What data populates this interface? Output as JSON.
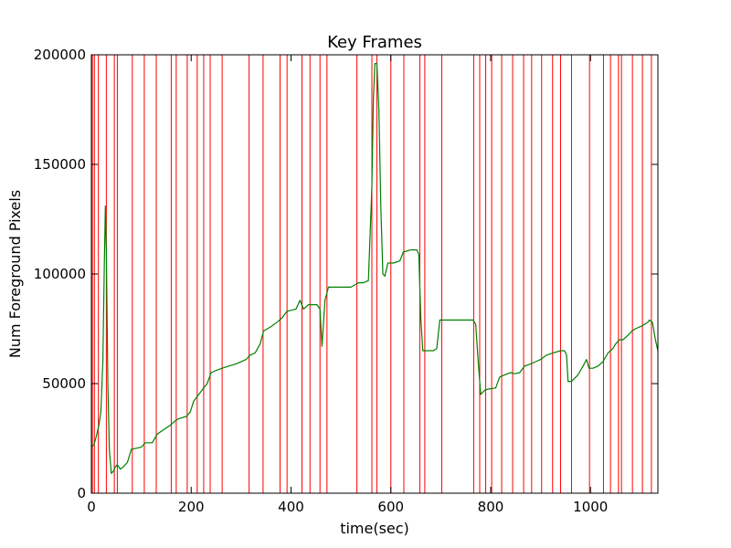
{
  "chart_data": {
    "type": "line",
    "title": "Key Frames",
    "xlabel": "time(sec)",
    "ylabel": "Num Foreground Pixels",
    "xlim": [
      0,
      1135
    ],
    "ylim": [
      0,
      200000
    ],
    "xticks": [
      0,
      200,
      400,
      600,
      800,
      1000
    ],
    "yticks": [
      0,
      50000,
      100000,
      150000,
      200000
    ],
    "xtick_labels": [
      "0",
      "200",
      "400",
      "600",
      "800",
      "1000"
    ],
    "ytick_labels": [
      "0",
      "50000",
      "100000",
      "150000",
      "200000"
    ],
    "grid": false,
    "legend": "none",
    "series": [
      {
        "color": "#008000",
        "points": [
          [
            0,
            21000
          ],
          [
            5,
            22000
          ],
          [
            10,
            26000
          ],
          [
            15,
            31000
          ],
          [
            19,
            37000
          ],
          [
            23,
            60000
          ],
          [
            26,
            105000
          ],
          [
            28,
            131000
          ],
          [
            30,
            110000
          ],
          [
            33,
            50000
          ],
          [
            36,
            20000
          ],
          [
            40,
            9000
          ],
          [
            44,
            10000
          ],
          [
            48,
            12000
          ],
          [
            52,
            13000
          ],
          [
            58,
            11000
          ],
          [
            64,
            12000
          ],
          [
            72,
            14000
          ],
          [
            80,
            20000
          ],
          [
            90,
            20500
          ],
          [
            100,
            21000
          ],
          [
            108,
            23000
          ],
          [
            122,
            23000
          ],
          [
            132,
            27000
          ],
          [
            145,
            29000
          ],
          [
            158,
            31000
          ],
          [
            168,
            33000
          ],
          [
            175,
            34000
          ],
          [
            190,
            35000
          ],
          [
            198,
            37000
          ],
          [
            205,
            42000
          ],
          [
            215,
            45000
          ],
          [
            225,
            48000
          ],
          [
            232,
            50000
          ],
          [
            240,
            55000
          ],
          [
            250,
            56000
          ],
          [
            262,
            57000
          ],
          [
            275,
            58000
          ],
          [
            290,
            59000
          ],
          [
            310,
            61000
          ],
          [
            318,
            63000
          ],
          [
            328,
            64000
          ],
          [
            338,
            68000
          ],
          [
            345,
            74000
          ],
          [
            360,
            76000
          ],
          [
            372,
            78000
          ],
          [
            382,
            80000
          ],
          [
            392,
            83000
          ],
          [
            410,
            84000
          ],
          [
            418,
            88000
          ],
          [
            425,
            84000
          ],
          [
            435,
            86000
          ],
          [
            445,
            86000
          ],
          [
            452,
            86000
          ],
          [
            458,
            84000
          ],
          [
            462,
            67000
          ],
          [
            468,
            88000
          ],
          [
            475,
            94000
          ],
          [
            490,
            94000
          ],
          [
            505,
            94000
          ],
          [
            520,
            94000
          ],
          [
            535,
            96000
          ],
          [
            545,
            96000
          ],
          [
            555,
            97000
          ],
          [
            562,
            140000
          ],
          [
            565,
            180000
          ],
          [
            568,
            196000
          ],
          [
            572,
            196000
          ],
          [
            576,
            175000
          ],
          [
            580,
            130000
          ],
          [
            584,
            100000
          ],
          [
            588,
            99000
          ],
          [
            594,
            105000
          ],
          [
            605,
            105000
          ],
          [
            618,
            106000
          ],
          [
            625,
            110000
          ],
          [
            640,
            111000
          ],
          [
            652,
            111000
          ],
          [
            656,
            109000
          ],
          [
            660,
            80000
          ],
          [
            664,
            65000
          ],
          [
            675,
            65000
          ],
          [
            685,
            65000
          ],
          [
            692,
            66000
          ],
          [
            698,
            79000
          ],
          [
            710,
            79000
          ],
          [
            730,
            79000
          ],
          [
            750,
            79000
          ],
          [
            765,
            79000
          ],
          [
            770,
            77000
          ],
          [
            775,
            60000
          ],
          [
            780,
            45000
          ],
          [
            788,
            47000
          ],
          [
            795,
            47500
          ],
          [
            810,
            48000
          ],
          [
            818,
            53000
          ],
          [
            828,
            54000
          ],
          [
            840,
            55000
          ],
          [
            848,
            54500
          ],
          [
            858,
            55000
          ],
          [
            868,
            58000
          ],
          [
            880,
            59000
          ],
          [
            890,
            60000
          ],
          [
            900,
            61000
          ],
          [
            912,
            63000
          ],
          [
            925,
            64000
          ],
          [
            940,
            65000
          ],
          [
            948,
            65000
          ],
          [
            952,
            63000
          ],
          [
            955,
            51000
          ],
          [
            962,
            51000
          ],
          [
            975,
            54000
          ],
          [
            985,
            58000
          ],
          [
            992,
            61000
          ],
          [
            997,
            57000
          ],
          [
            1005,
            57000
          ],
          [
            1015,
            58000
          ],
          [
            1025,
            60000
          ],
          [
            1035,
            64000
          ],
          [
            1045,
            66000
          ],
          [
            1050,
            68000
          ],
          [
            1058,
            70000
          ],
          [
            1065,
            70000
          ],
          [
            1075,
            72000
          ],
          [
            1083,
            74000
          ],
          [
            1090,
            75000
          ],
          [
            1100,
            76000
          ],
          [
            1108,
            77000
          ],
          [
            1115,
            78000
          ],
          [
            1118,
            79000
          ],
          [
            1124,
            78000
          ],
          [
            1130,
            70000
          ],
          [
            1135,
            65000
          ]
        ]
      }
    ],
    "vlines": {
      "color": "#ff0000",
      "x": [
        2,
        6,
        14,
        30,
        46,
        52,
        82,
        106,
        130,
        160,
        170,
        192,
        212,
        225,
        238,
        262,
        316,
        344,
        378,
        392,
        422,
        438,
        458,
        472,
        532,
        562,
        572,
        600,
        626,
        658,
        668,
        702,
        766,
        778,
        790,
        802,
        822,
        844,
        866,
        882,
        902,
        924,
        940,
        962,
        998,
        1026,
        1040,
        1056,
        1062,
        1084,
        1104,
        1122
      ]
    }
  }
}
